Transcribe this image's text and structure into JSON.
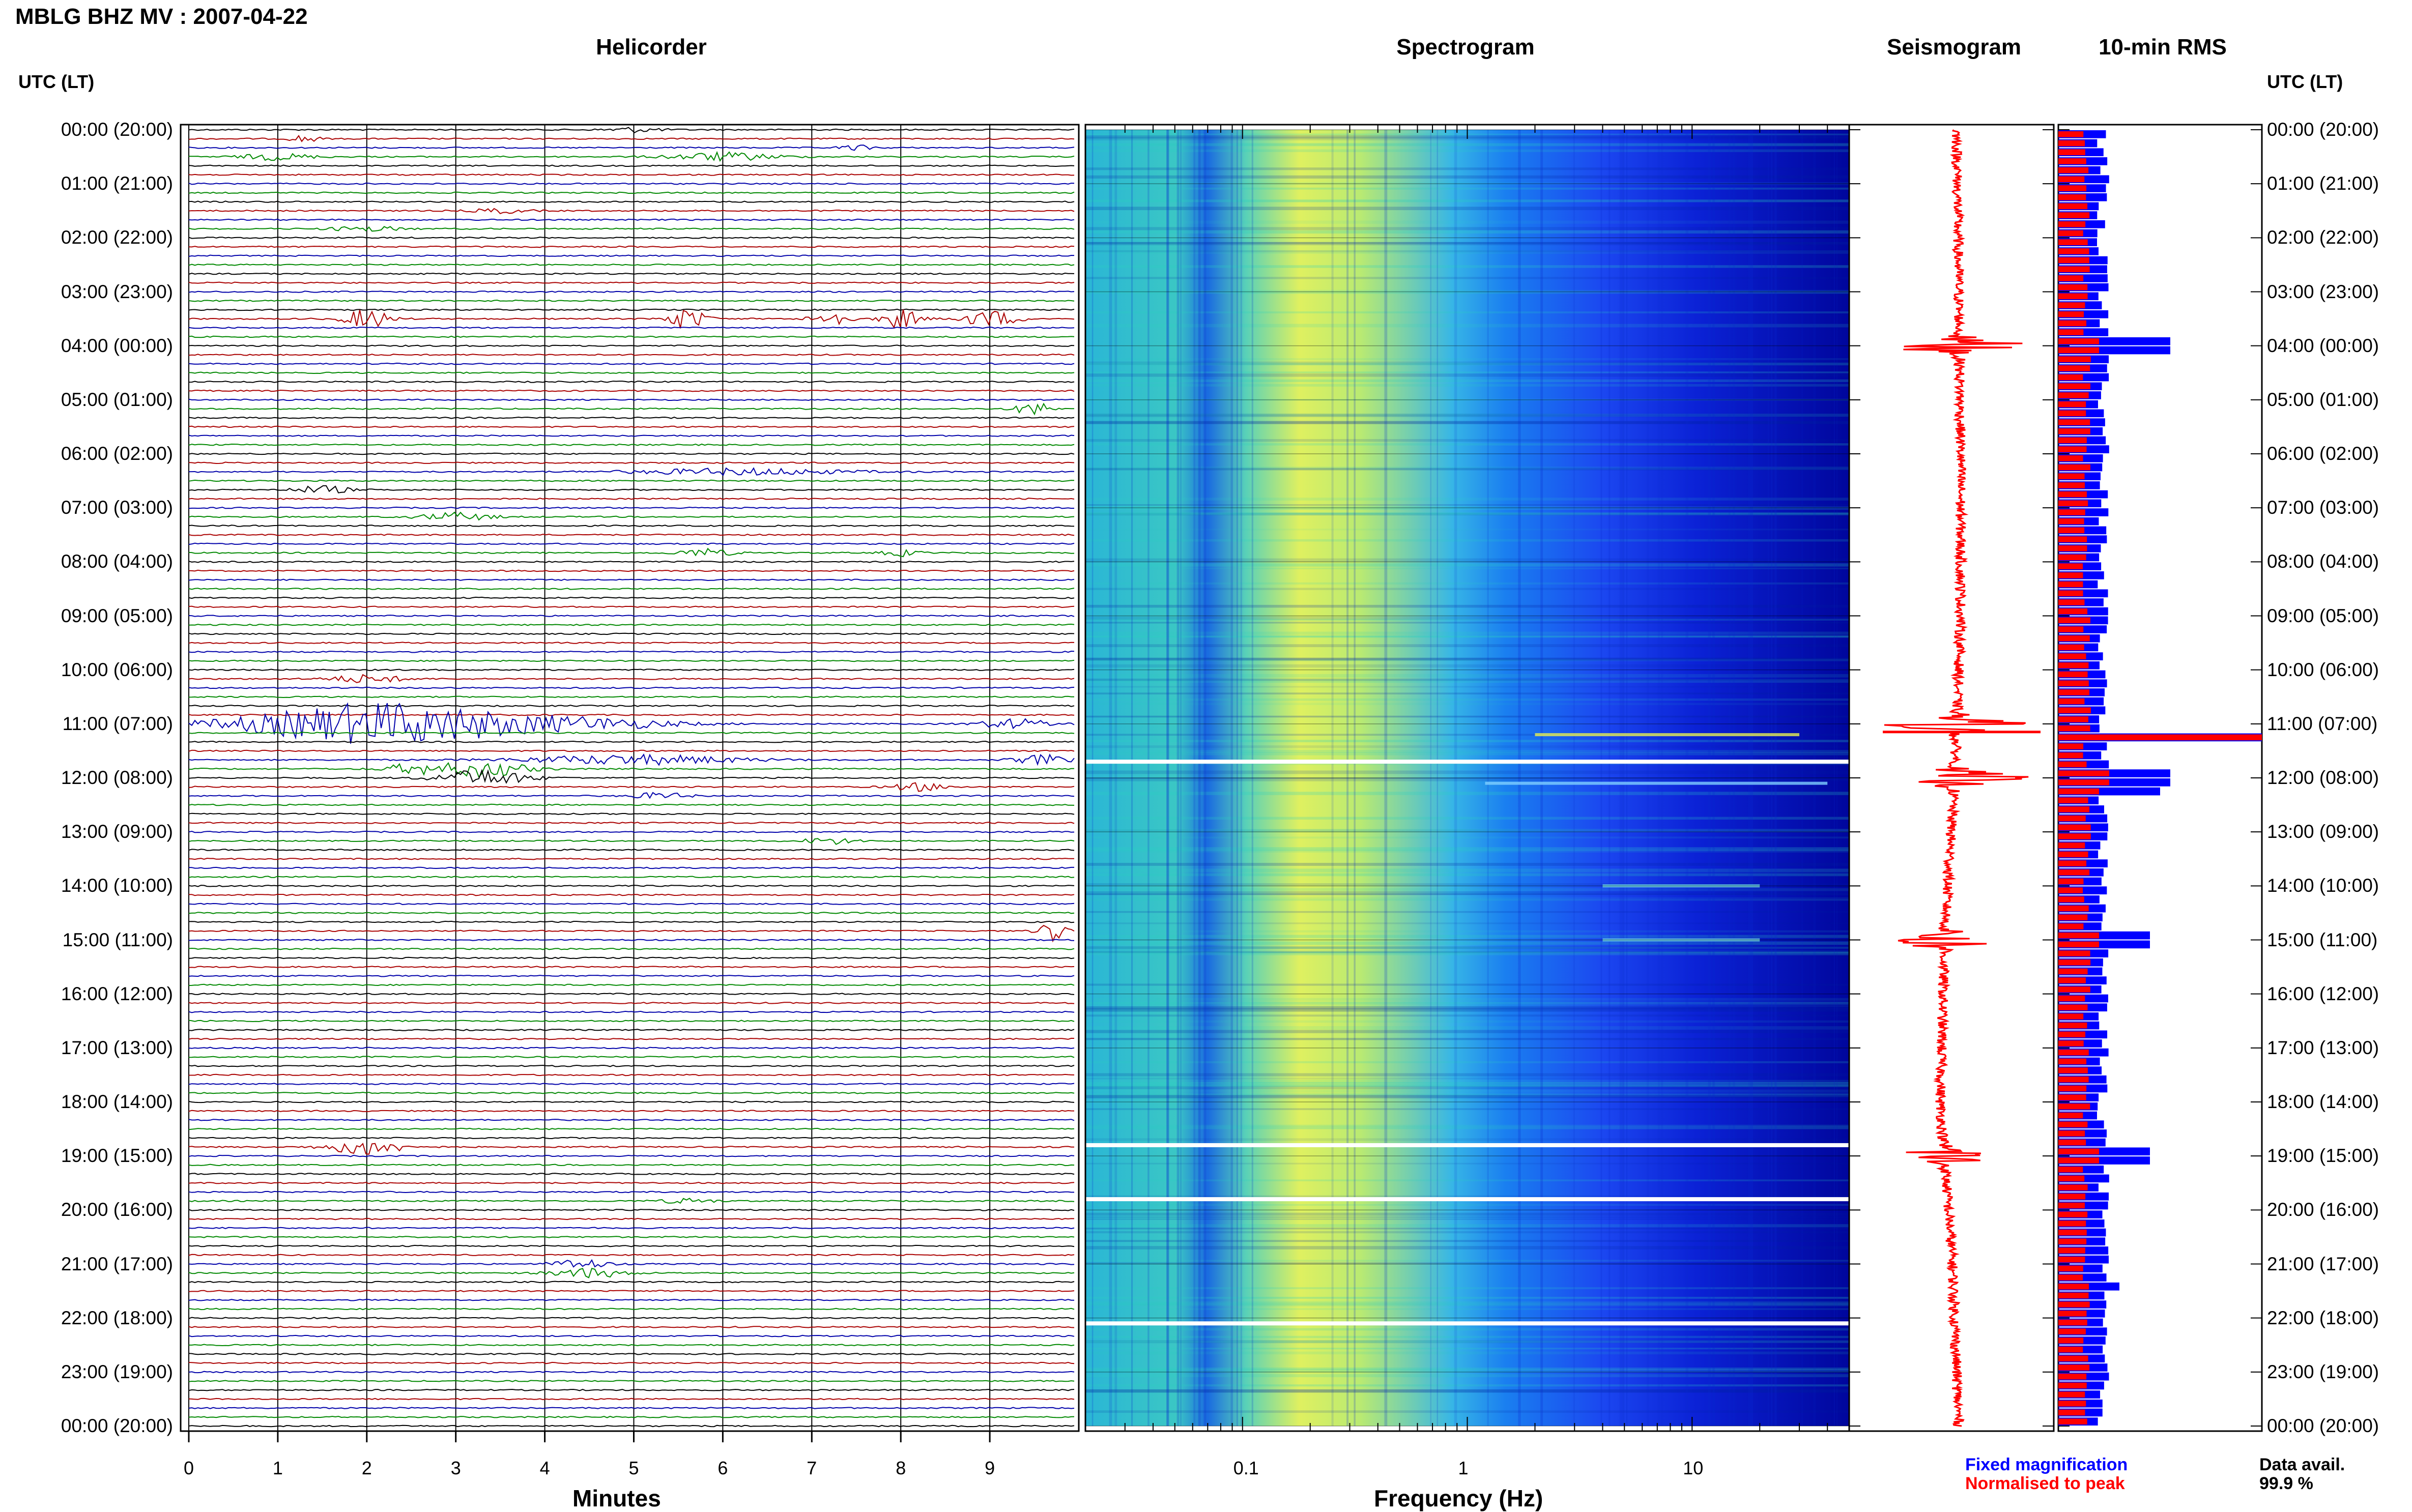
{
  "title": "MBLG BHZ MV : 2007-04-22",
  "panels": {
    "helicorder": "Helicorder",
    "spectrogram": "Spectrogram",
    "seismogram": "Seismogram",
    "rms": "10-min RMS"
  },
  "utc_label_left": "UTC (LT)",
  "utc_label_right": "UTC (LT)",
  "time_labels": [
    "00:00 (20:00)",
    "01:00 (21:00)",
    "02:00 (22:00)",
    "03:00 (23:00)",
    "04:00 (00:00)",
    "05:00 (01:00)",
    "06:00 (02:00)",
    "07:00 (03:00)",
    "08:00 (04:00)",
    "09:00 (05:00)",
    "10:00 (06:00)",
    "11:00 (07:00)",
    "12:00 (08:00)",
    "13:00 (09:00)",
    "14:00 (10:00)",
    "15:00 (11:00)",
    "16:00 (12:00)",
    "17:00 (13:00)",
    "18:00 (14:00)",
    "19:00 (15:00)",
    "20:00 (16:00)",
    "21:00 (17:00)",
    "22:00 (18:00)",
    "23:00 (19:00)",
    "00:00 (20:00)"
  ],
  "legend": {
    "fixed": "Fixed magnification",
    "normalised": "Normalised to peak",
    "fixed_color": "#0000ff",
    "normalised_color": "#ff0000"
  },
  "data_avail": {
    "label": "Data avail.",
    "value": "99.9 %"
  },
  "chart_data": [
    {
      "type": "line",
      "title": "Helicorder",
      "xlabel": "Minutes",
      "x_ticks": [
        "0",
        "1",
        "2",
        "3",
        "4",
        "5",
        "6",
        "7",
        "8",
        "9"
      ],
      "xlim": [
        0,
        10
      ],
      "rows_per_hour": 6,
      "row_minutes": 10,
      "trace_colors": [
        "#000000",
        "#aa0000",
        "#0000aa",
        "#008800"
      ],
      "events": [
        {
          "row": 0,
          "minute": 5.0,
          "amp": 0.3,
          "width": 0.3
        },
        {
          "row": 1,
          "minute": 1.3,
          "amp": 0.5,
          "width": 0.15
        },
        {
          "row": 2,
          "minute": 7.5,
          "amp": 0.3,
          "width": 0.2
        },
        {
          "row": 3,
          "minute": 1.0,
          "amp": 0.4,
          "width": 0.4
        },
        {
          "row": 3,
          "minute": 6.0,
          "amp": 0.5,
          "width": 0.6
        },
        {
          "row": 9,
          "minute": 3.5,
          "amp": 0.3,
          "width": 0.3
        },
        {
          "row": 11,
          "minute": 2.0,
          "amp": 0.3,
          "width": 0.4
        },
        {
          "row": 21,
          "minute": 2.0,
          "amp": 1.2,
          "width": 0.25
        },
        {
          "row": 21,
          "minute": 5.6,
          "amp": 1.4,
          "width": 0.2
        },
        {
          "row": 21,
          "minute": 7.2,
          "amp": 1.0,
          "width": 0.2
        },
        {
          "row": 21,
          "minute": 8.0,
          "amp": 1.2,
          "width": 0.2
        },
        {
          "row": 21,
          "minute": 9.0,
          "amp": 1.0,
          "width": 0.3
        },
        {
          "row": 31,
          "minute": 9.5,
          "amp": 0.8,
          "width": 0.2
        },
        {
          "row": 38,
          "minute": 6.2,
          "amp": 0.4,
          "width": 1.2
        },
        {
          "row": 40,
          "minute": 1.5,
          "amp": 0.5,
          "width": 0.3
        },
        {
          "row": 43,
          "minute": 3.0,
          "amp": 0.5,
          "width": 0.4
        },
        {
          "row": 47,
          "minute": 5.8,
          "amp": 0.5,
          "width": 0.3
        },
        {
          "row": 47,
          "minute": 8.0,
          "amp": 0.4,
          "width": 0.2
        },
        {
          "row": 61,
          "minute": 2.0,
          "amp": 0.5,
          "width": 0.4
        },
        {
          "row": 66,
          "minute": 2.2,
          "amp": 2.6,
          "width": 1.5
        },
        {
          "row": 66,
          "minute": 4.5,
          "amp": 0.6,
          "width": 1.0
        },
        {
          "row": 66,
          "minute": 9.3,
          "amp": 0.6,
          "width": 0.4
        },
        {
          "row": 70,
          "minute": 5.0,
          "amp": 0.6,
          "width": 1.2
        },
        {
          "row": 70,
          "minute": 9.6,
          "amp": 0.6,
          "width": 0.3
        },
        {
          "row": 71,
          "minute": 2.5,
          "amp": 0.6,
          "width": 0.3
        },
        {
          "row": 71,
          "minute": 3.3,
          "amp": 1.0,
          "width": 0.5
        },
        {
          "row": 72,
          "minute": 3.3,
          "amp": 1.0,
          "width": 0.5
        },
        {
          "row": 73,
          "minute": 8.2,
          "amp": 0.5,
          "width": 0.3
        },
        {
          "row": 74,
          "minute": 5.3,
          "amp": 0.4,
          "width": 0.3
        },
        {
          "row": 79,
          "minute": 7.2,
          "amp": 0.4,
          "width": 0.3
        },
        {
          "row": 89,
          "minute": 9.7,
          "amp": 1.2,
          "width": 0.15
        },
        {
          "row": 113,
          "minute": 2.0,
          "amp": 1.0,
          "width": 0.4
        },
        {
          "row": 119,
          "minute": 5.6,
          "amp": 0.3,
          "width": 0.3
        },
        {
          "row": 126,
          "minute": 4.4,
          "amp": 0.6,
          "width": 0.3
        },
        {
          "row": 127,
          "minute": 4.5,
          "amp": 0.6,
          "width": 0.4
        }
      ]
    },
    {
      "type": "heatmap",
      "title": "Spectrogram",
      "xlabel": "Frequency (Hz)",
      "x_scale": "log",
      "x_ticks": [
        "0.1",
        "1",
        "10"
      ],
      "xlim": [
        0.02,
        50
      ],
      "colormap": [
        "#00008b",
        "#0000ff",
        "#0080ff",
        "#00c8ff",
        "#40e0d0",
        "#80ff80",
        "#ffff40"
      ],
      "peak_band_hz": [
        0.15,
        0.5
      ],
      "gap_hours": [
        11.7,
        18.8,
        19.8,
        22.1
      ]
    },
    {
      "type": "line",
      "title": "Seismogram",
      "color": "#ff0000",
      "spikes_hours": [
        4.0,
        11.0,
        12.0,
        15.0,
        19.0
      ],
      "drift": [
        [
          0,
          0
        ],
        [
          3,
          0.05
        ],
        [
          6,
          0.1
        ],
        [
          9,
          0.1
        ],
        [
          12,
          -0.05
        ],
        [
          15,
          -0.3
        ],
        [
          18,
          -0.4
        ],
        [
          21,
          -0.1
        ],
        [
          24,
          0.05
        ]
      ]
    },
    {
      "type": "bar",
      "title": "10-min RMS",
      "series": [
        {
          "name": "Fixed magnification",
          "color": "#0000ff"
        },
        {
          "name": "Normalised to peak",
          "color": "#ff0000"
        }
      ],
      "peaks_hours": [
        {
          "hour": 4.0,
          "fixed": 0.55,
          "normalised": 0.2
        },
        {
          "hour": 11.2,
          "fixed": 1.0,
          "normalised": 1.0
        },
        {
          "hour": 12.0,
          "fixed": 0.55,
          "normalised": 0.25
        },
        {
          "hour": 12.3,
          "fixed": 0.5,
          "normalised": 0.2
        },
        {
          "hour": 15.0,
          "fixed": 0.45,
          "normalised": 0.2
        },
        {
          "hour": 19.0,
          "fixed": 0.45,
          "normalised": 0.2
        },
        {
          "hour": 21.4,
          "fixed": 0.3,
          "normalised": 0.15
        }
      ],
      "baseline_fixed": 0.22,
      "baseline_normalised": 0.14
    }
  ]
}
